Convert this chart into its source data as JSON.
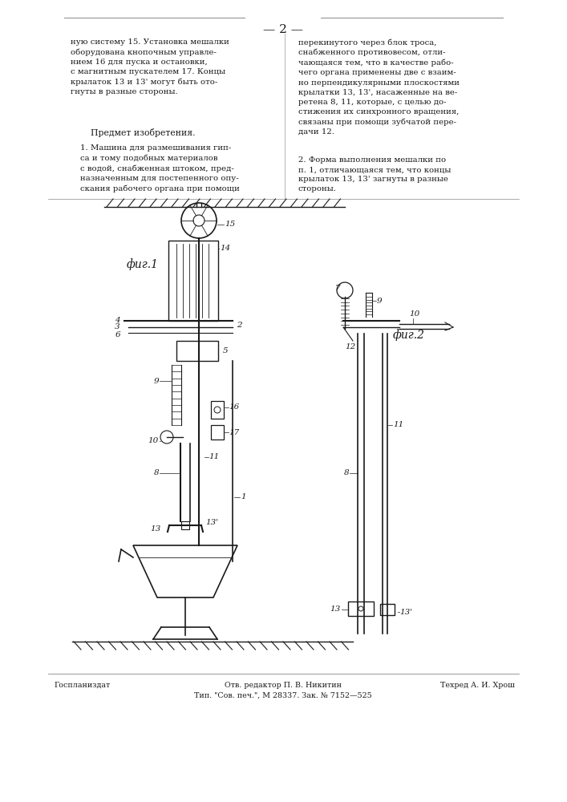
{
  "page_number": "— 2 —",
  "background_color": "#ffffff",
  "text_color": "#1a1a1a",
  "top_text_left": "ную систему 15. Установка мешалки\nоборудована кнопочным управле-\nнием 16 для пуска и остановки,\nс магнитным пускателем 17. Концы\nкрылаток 13 и 13' могут быть ото-\nгнуты в разные стороны.",
  "section_title": "Предмет изобретения.",
  "claim1_text": "1. Машина для размешивания гип-\nса и тому подобных материалов\nс водой, снабженная штоком, пред-\nназначенным для постепенного опу-\nскания рабочего органа при помощи",
  "top_text_right": "перекинутого через блок троса,\nснабженного противовесом, отли-\nчающаяся тем, что в качестве рабо-\nчего органа применены две с взаим-\nно перпендикулярными плоскостями\nкрылатки 13, 13', насаженные на ве-\nретена 8, 11, которые, с целью до-\nстижения их синхронного вращения,\nсвязаны при помощи зубчатой пере-\nдачи 12.",
  "claim2_text": "2. Форма выполнения мешалки по\nп. 1, отличающаяся тем, что концы\nкрылаток 13, 13' загнуты в разные\nстороны.",
  "fig1_label": "фиг.1",
  "fig2_label": "фиг.2",
  "footer_left": "Госпланиздат",
  "footer_center": "Отв. редактор П. В. Никитин\nТип. \"Сов. печ.\", М 28337. Зак. № 7152—525",
  "footer_right": "Техред А. И. Хрош",
  "drawing_color": "#1a1a1a"
}
